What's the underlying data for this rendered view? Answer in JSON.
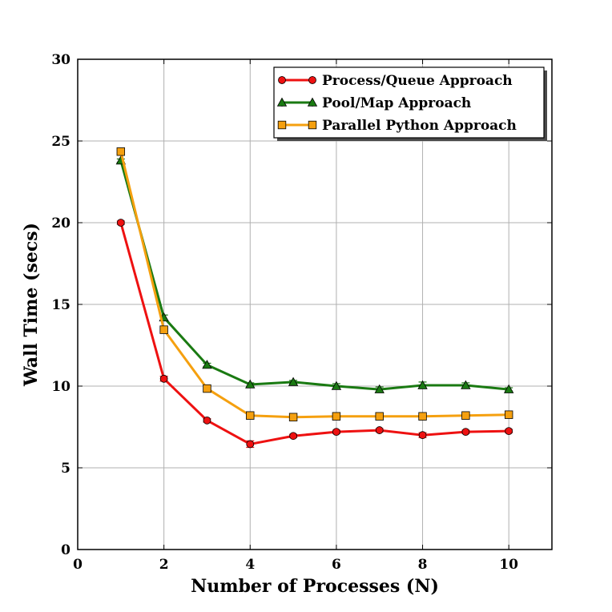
{
  "chart_data": {
    "type": "line",
    "title": "",
    "xlabel": "Number of Processes (N)",
    "ylabel": "Wall Time (secs)",
    "xlim": [
      0,
      11
    ],
    "ylim": [
      0,
      30
    ],
    "xticks": [
      0,
      2,
      4,
      6,
      8,
      10
    ],
    "yticks": [
      0,
      5,
      10,
      15,
      20,
      25,
      30
    ],
    "grid": true,
    "legend_position": "top-right",
    "x": [
      1,
      2,
      3,
      4,
      5,
      6,
      7,
      8,
      9,
      10
    ],
    "series": [
      {
        "name": "Process/Queue Approach",
        "color": "#ee1111",
        "marker": "circle",
        "values": [
          20.0,
          10.45,
          7.9,
          6.45,
          6.95,
          7.2,
          7.3,
          7.0,
          7.2,
          7.25
        ],
        "errors": [
          0.1,
          0.15,
          0.1,
          0.2,
          0.1,
          0.1,
          0.1,
          0.15,
          0.1,
          0.1
        ]
      },
      {
        "name": "Pool/Map Approach",
        "color": "#1a7a12",
        "marker": "triangle",
        "values": [
          23.8,
          14.2,
          11.3,
          10.1,
          10.25,
          10.0,
          9.8,
          10.05,
          10.05,
          9.8
        ],
        "errors": [
          0.1,
          0.15,
          0.1,
          0.1,
          0.1,
          0.15,
          0.15,
          0.2,
          0.15,
          0.1
        ]
      },
      {
        "name": "Parallel Python Approach",
        "color": "#f5a00f",
        "marker": "square",
        "values": [
          24.35,
          13.45,
          9.85,
          8.2,
          8.1,
          8.15,
          8.15,
          8.15,
          8.2,
          8.25
        ],
        "errors": [
          0.1,
          0.1,
          0.1,
          0.1,
          0.1,
          0.1,
          0.1,
          0.1,
          0.1,
          0.1
        ]
      }
    ]
  }
}
